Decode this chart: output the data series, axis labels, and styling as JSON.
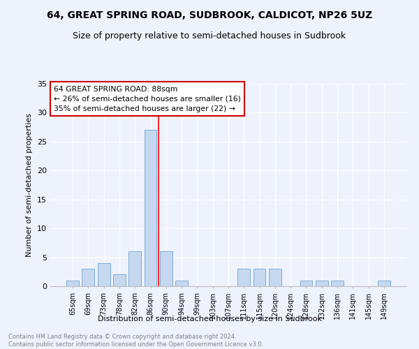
{
  "title": "64, GREAT SPRING ROAD, SUDBROOK, CALDICOT, NP26 5UZ",
  "subtitle": "Size of property relative to semi-detached houses in Sudbrook",
  "xlabel": "Distribution of semi-detached houses by size in Sudbrook",
  "ylabel": "Number of semi-detached properties",
  "categories": [
    "65sqm",
    "69sqm",
    "73sqm",
    "78sqm",
    "82sqm",
    "86sqm",
    "90sqm",
    "94sqm",
    "99sqm",
    "103sqm",
    "107sqm",
    "111sqm",
    "115sqm",
    "120sqm",
    "124sqm",
    "128sqm",
    "132sqm",
    "136sqm",
    "141sqm",
    "145sqm",
    "149sqm"
  ],
  "values": [
    1,
    3,
    4,
    2,
    6,
    27,
    6,
    1,
    0,
    0,
    0,
    3,
    3,
    3,
    0,
    1,
    1,
    1,
    0,
    0,
    1
  ],
  "bar_color": "#c5d8f0",
  "bar_edge_color": "#7aadd4",
  "red_line_x": 5.5,
  "annotation_text": "64 GREAT SPRING ROAD: 88sqm\n← 26% of semi-detached houses are smaller (16)\n35% of semi-detached houses are larger (22) →",
  "annotation_box_color": "white",
  "annotation_box_edge_color": "#cc0000",
  "footer": "Contains HM Land Registry data © Crown copyright and database right 2024.\nContains public sector information licensed under the Open Government Licence v3.0.",
  "background_color": "#eef2fb",
  "ylim": [
    0,
    35
  ],
  "yticks": [
    0,
    5,
    10,
    15,
    20,
    25,
    30,
    35
  ],
  "title_fontsize": 10,
  "subtitle_fontsize": 9
}
